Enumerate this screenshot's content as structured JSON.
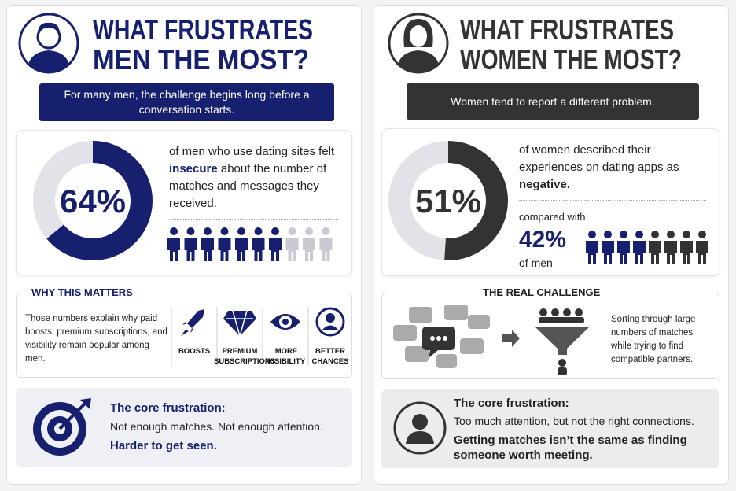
{
  "left": {
    "title": [
      "WHAT FRUSTRATES",
      "MEN THE MOST?"
    ],
    "banner": "For many men, the challenge begins long before a conversation starts.",
    "stat": {
      "value": 64,
      "label": "64%",
      "text": [
        "of men who use dating sites felt ",
        "insecure",
        " about the number of matches and messages they received."
      ]
    },
    "section_title": "WHY THIS MATTERS",
    "section_text": "Those numbers explain why paid boosts, premium subscriptions, and visibility remain popular among men.",
    "features": [
      "BOOSTS",
      "PREMIUM SUBSCRIPTIONS",
      "MORE VISIBILITY",
      "BETTER CHANCES"
    ],
    "core": {
      "title": "The core frustration:",
      "lines": [
        "Not enough matches. Not enough attention.",
        "Harder to get seen."
      ]
    }
  },
  "right": {
    "title": [
      "WHAT FRUSTRATES",
      "WOMEN THE MOST?"
    ],
    "banner": "Women tend to report a different problem.",
    "stat": {
      "value": 51,
      "label": "51%",
      "text": [
        "of women described their experiences on dating apps as ",
        "negative."
      ]
    },
    "comparison": {
      "prefix": "compared with",
      "label": "42%",
      "suffix": "of men"
    },
    "section_title": "THE REAL CHALLENGE",
    "section_text": "Sorting through large numbers of matches while trying to find compatible partners.",
    "core": {
      "title": "The core frustration:",
      "lines": [
        "Too much attention, but not the right connections.",
        "Getting matches isn’t the same as finding someone worth meeting."
      ]
    }
  }
}
